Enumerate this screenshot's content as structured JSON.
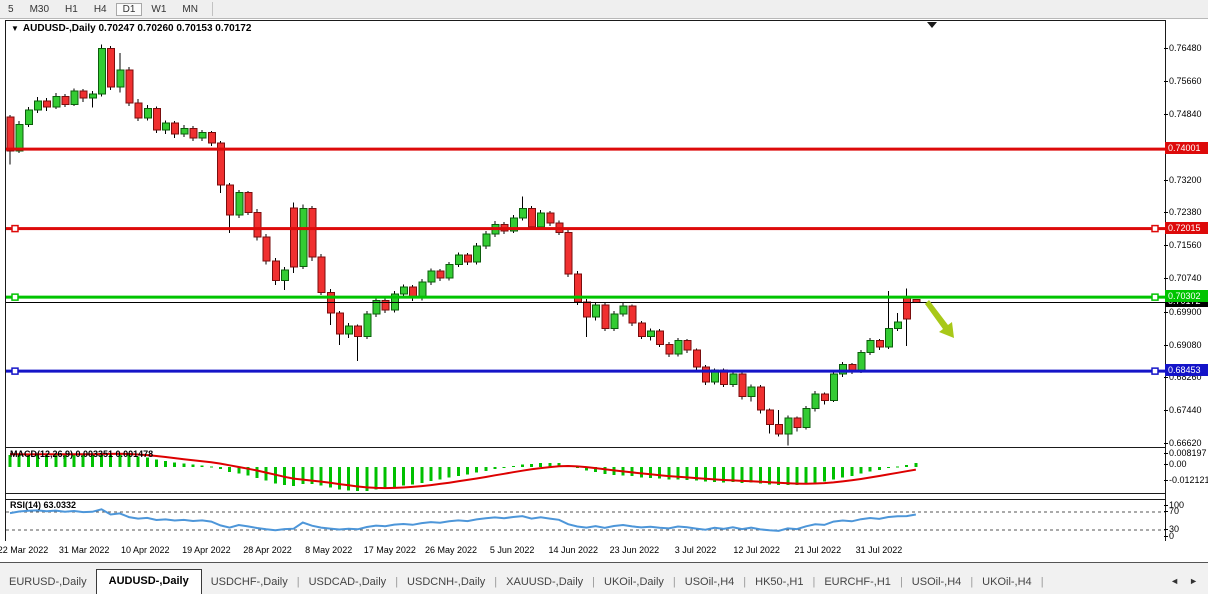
{
  "toolbar": {
    "timeframes": [
      "5",
      "M30",
      "H1",
      "H4",
      "D1",
      "W1",
      "MN"
    ],
    "active": "D1"
  },
  "title": {
    "symbol": "AUDUSD-,Daily",
    "ohlc": "0.70247 0.70260 0.70153 0.70172"
  },
  "chart_data": {
    "type": "candlestick",
    "symbol": "AUDUSD",
    "period": "Daily",
    "last_bar": {
      "open": 0.70247,
      "high": 0.7026,
      "low": 0.70153,
      "close": 0.70172
    },
    "y_ticks": [
      0.7648,
      0.7566,
      0.7484,
      0.732,
      0.7238,
      0.7156,
      0.7074,
      0.699,
      0.6908,
      0.6826,
      0.6744,
      0.6662
    ],
    "x_labels": [
      "22 Mar 2022",
      "31 Mar 2022",
      "10 Apr 2022",
      "19 Apr 2022",
      "28 Apr 2022",
      "8 May 2022",
      "17 May 2022",
      "26 May 2022",
      "5 Jun 2022",
      "14 Jun 2022",
      "23 Jun 2022",
      "3 Jul 2022",
      "12 Jul 2022",
      "21 Jul 2022",
      "31 Jul 2022"
    ],
    "hlines": [
      {
        "price": 0.74001,
        "label": "0.74001",
        "color": "#dd0a0a",
        "handles": false
      },
      {
        "price": 0.72015,
        "label": "0.72015",
        "color": "#dd0a0a",
        "handles": true
      },
      {
        "price": 0.70302,
        "label": "0.70302",
        "color": "#00c400",
        "handles": true
      },
      {
        "price": 0.68453,
        "label": "0.68453",
        "color": "#1414c8",
        "handles": true
      }
    ],
    "current_price": {
      "price": 0.70172,
      "label": "0.70172",
      "color": "#000000"
    },
    "up_color": "#33cc33",
    "down_color": "#f03030",
    "candles": [
      [
        0.748,
        0.7485,
        0.7362,
        0.7395
      ],
      [
        0.7395,
        0.747,
        0.739,
        0.7462
      ],
      [
        0.7462,
        0.7505,
        0.7455,
        0.7498
      ],
      [
        0.7498,
        0.753,
        0.749,
        0.752
      ],
      [
        0.752,
        0.7528,
        0.7495,
        0.7505
      ],
      [
        0.7505,
        0.754,
        0.75,
        0.7532
      ],
      [
        0.7532,
        0.7538,
        0.7505,
        0.7512
      ],
      [
        0.7512,
        0.7552,
        0.7508,
        0.7545
      ],
      [
        0.7545,
        0.755,
        0.7518,
        0.7528
      ],
      [
        0.7528,
        0.7545,
        0.7504,
        0.7538
      ],
      [
        0.7538,
        0.7661,
        0.7532,
        0.7652
      ],
      [
        0.7652,
        0.7658,
        0.7548,
        0.7555
      ],
      [
        0.7555,
        0.764,
        0.7542,
        0.7598
      ],
      [
        0.7598,
        0.7605,
        0.7508,
        0.7515
      ],
      [
        0.7515,
        0.7525,
        0.747,
        0.7478
      ],
      [
        0.7478,
        0.751,
        0.7472,
        0.7502
      ],
      [
        0.7502,
        0.7506,
        0.744,
        0.7448
      ],
      [
        0.7448,
        0.7472,
        0.7438,
        0.7465
      ],
      [
        0.7465,
        0.747,
        0.7428,
        0.7438
      ],
      [
        0.7438,
        0.746,
        0.743,
        0.7452
      ],
      [
        0.7452,
        0.7458,
        0.742,
        0.7428
      ],
      [
        0.7428,
        0.7448,
        0.742,
        0.7442
      ],
      [
        0.7442,
        0.7446,
        0.7408,
        0.7415
      ],
      [
        0.7415,
        0.742,
        0.729,
        0.731
      ],
      [
        0.731,
        0.7315,
        0.719,
        0.7235
      ],
      [
        0.7235,
        0.7298,
        0.7228,
        0.7292
      ],
      [
        0.7292,
        0.7296,
        0.7235,
        0.7242
      ],
      [
        0.7242,
        0.725,
        0.7172,
        0.718
      ],
      [
        0.718,
        0.7188,
        0.7112,
        0.712
      ],
      [
        0.712,
        0.7128,
        0.706,
        0.7072
      ],
      [
        0.7072,
        0.7105,
        0.7048,
        0.7098
      ],
      [
        0.7253,
        0.7267,
        0.709,
        0.7105
      ],
      [
        0.7107,
        0.7262,
        0.71,
        0.7252
      ],
      [
        0.7252,
        0.7258,
        0.712,
        0.713
      ],
      [
        0.713,
        0.7138,
        0.7035,
        0.7042
      ],
      [
        0.7042,
        0.705,
        0.696,
        0.699
      ],
      [
        0.699,
        0.6996,
        0.691,
        0.6938
      ],
      [
        0.6938,
        0.6965,
        0.6928,
        0.6958
      ],
      [
        0.6958,
        0.6962,
        0.687,
        0.6932
      ],
      [
        0.6932,
        0.6995,
        0.6925,
        0.6988
      ],
      [
        0.6988,
        0.703,
        0.698,
        0.7022
      ],
      [
        0.7022,
        0.7028,
        0.699,
        0.6998
      ],
      [
        0.6998,
        0.7045,
        0.6992,
        0.7038
      ],
      [
        0.7038,
        0.7062,
        0.703,
        0.7055
      ],
      [
        0.7055,
        0.706,
        0.702,
        0.7028
      ],
      [
        0.7028,
        0.7075,
        0.7022,
        0.7068
      ],
      [
        0.7068,
        0.7102,
        0.706,
        0.7095
      ],
      [
        0.7095,
        0.71,
        0.707,
        0.7078
      ],
      [
        0.7078,
        0.7118,
        0.7072,
        0.7112
      ],
      [
        0.7112,
        0.7142,
        0.7105,
        0.7135
      ],
      [
        0.7135,
        0.714,
        0.711,
        0.7118
      ],
      [
        0.7118,
        0.7165,
        0.7112,
        0.7158
      ],
      [
        0.7158,
        0.7195,
        0.715,
        0.7188
      ],
      [
        0.7188,
        0.722,
        0.718,
        0.7212
      ],
      [
        0.7212,
        0.7218,
        0.7188,
        0.7195
      ],
      [
        0.7195,
        0.7235,
        0.719,
        0.7228
      ],
      [
        0.7228,
        0.7282,
        0.7222,
        0.7252
      ],
      [
        0.7252,
        0.7258,
        0.7198,
        0.7205
      ],
      [
        0.7205,
        0.7248,
        0.72,
        0.724
      ],
      [
        0.724,
        0.7245,
        0.7208,
        0.7215
      ],
      [
        0.7215,
        0.7222,
        0.7185,
        0.7192
      ],
      [
        0.7192,
        0.7198,
        0.708,
        0.7088
      ],
      [
        0.7088,
        0.7095,
        0.701,
        0.7018
      ],
      [
        0.7018,
        0.7025,
        0.693,
        0.698
      ],
      [
        0.698,
        0.7015,
        0.6972,
        0.701
      ],
      [
        0.701,
        0.7016,
        0.6945,
        0.6952
      ],
      [
        0.6952,
        0.6995,
        0.6945,
        0.6988
      ],
      [
        0.6988,
        0.7015,
        0.6982,
        0.7008
      ],
      [
        0.7008,
        0.7012,
        0.6958,
        0.6965
      ],
      [
        0.6965,
        0.697,
        0.6925,
        0.6932
      ],
      [
        0.6932,
        0.6952,
        0.6922,
        0.6945
      ],
      [
        0.6945,
        0.695,
        0.6905,
        0.6912
      ],
      [
        0.6912,
        0.6918,
        0.688,
        0.6888
      ],
      [
        0.6888,
        0.6928,
        0.6882,
        0.6922
      ],
      [
        0.6922,
        0.6926,
        0.689,
        0.6898
      ],
      [
        0.6898,
        0.6902,
        0.6848,
        0.6855
      ],
      [
        0.6855,
        0.686,
        0.681,
        0.6818
      ],
      [
        0.6818,
        0.6852,
        0.6812,
        0.6848
      ],
      [
        0.6848,
        0.6852,
        0.6805,
        0.6812
      ],
      [
        0.6812,
        0.6842,
        0.6806,
        0.6838
      ],
      [
        0.6838,
        0.6842,
        0.6775,
        0.6782
      ],
      [
        0.6782,
        0.6812,
        0.677,
        0.6805
      ],
      [
        0.6805,
        0.681,
        0.674,
        0.6748
      ],
      [
        0.6748,
        0.6752,
        0.669,
        0.6712
      ],
      [
        0.6712,
        0.6748,
        0.6682,
        0.6688
      ],
      [
        0.6688,
        0.6735,
        0.666,
        0.6728
      ],
      [
        0.6728,
        0.6732,
        0.6695,
        0.6705
      ],
      [
        0.6705,
        0.6758,
        0.67,
        0.6752
      ],
      [
        0.6752,
        0.6795,
        0.6745,
        0.6788
      ],
      [
        0.6788,
        0.6792,
        0.6762,
        0.6772
      ],
      [
        0.6772,
        0.6845,
        0.6768,
        0.6838
      ],
      [
        0.6838,
        0.6868,
        0.683,
        0.6862
      ],
      [
        0.6862,
        0.6866,
        0.6838,
        0.6845
      ],
      [
        0.6845,
        0.6898,
        0.684,
        0.6892
      ],
      [
        0.6892,
        0.6928,
        0.6885,
        0.6922
      ],
      [
        0.6922,
        0.6926,
        0.6898,
        0.6905
      ],
      [
        0.6905,
        0.7045,
        0.69,
        0.6952
      ],
      [
        0.6952,
        0.699,
        0.6945,
        0.6968
      ],
      [
        0.703,
        0.7052,
        0.6908,
        0.6975
      ],
      [
        0.70247,
        0.7026,
        0.70153,
        0.70172
      ]
    ],
    "indicators": {
      "macd": {
        "label": "MACD(12,26,9) 0.003351 0.001478",
        "axis": [
          "0.008197",
          "0.00",
          "-0.012121"
        ],
        "histogram_color": "#00c000",
        "signal_color": "#dd0000"
      },
      "rsi": {
        "label": "RSI(14) 63.0332",
        "axis": [
          "100",
          "70",
          "30",
          "0"
        ],
        "levels": [
          70,
          30
        ],
        "line_color": "#4d96d9"
      }
    },
    "annotation": {
      "type": "arrow-down-right",
      "color": "#a8c818"
    }
  },
  "tabs": {
    "items": [
      "EURUSD-,Daily",
      "AUDUSD-,Daily",
      "USDCHF-,Daily",
      "USDCAD-,Daily",
      "USDCNH-,Daily",
      "XAUUSD-,Daily",
      "UKOil-,Daily",
      "USOil-,H4",
      "HK50-,H1",
      "EURCHF-,H1",
      "USOil-,H4",
      "UKOil-,H4"
    ],
    "active_index": 1
  }
}
